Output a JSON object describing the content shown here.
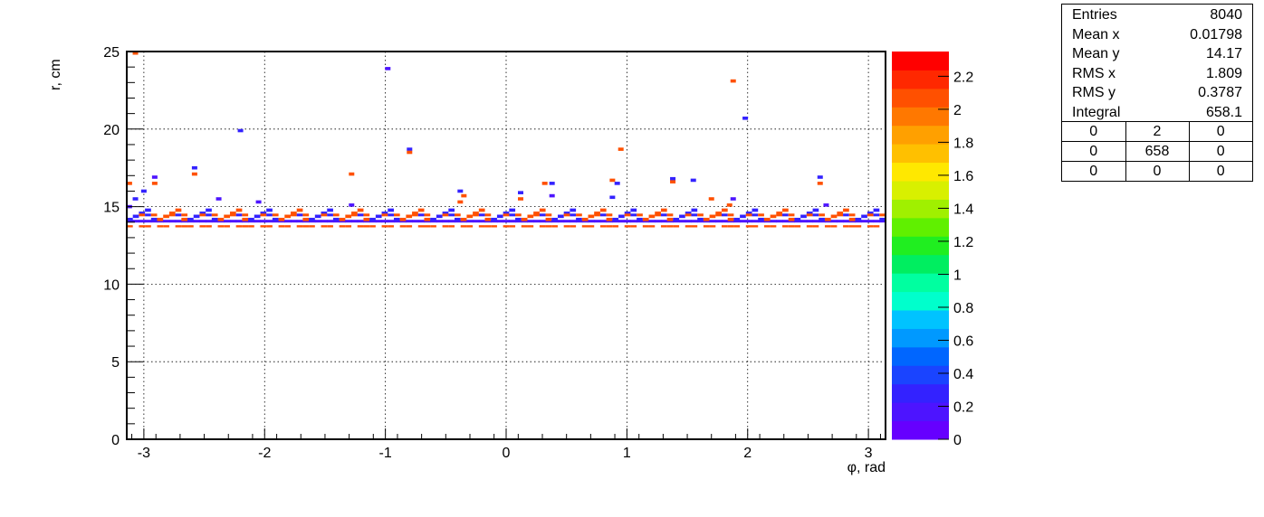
{
  "chart_data": {
    "type": "heatmap",
    "xlabel": "φ, rad",
    "ylabel": "r, cm",
    "xlim": [
      -3.1416,
      3.1416
    ],
    "ylim": [
      0,
      25
    ],
    "xticks": [
      "-3",
      "-2",
      "-1",
      "0",
      "1",
      "2",
      "3"
    ],
    "yticks": [
      "0",
      "5",
      "10",
      "15",
      "20",
      "25"
    ],
    "grid": true,
    "colorbar": {
      "range": [
        0,
        2.35
      ],
      "ticks": [
        "0",
        "0.2",
        "0.4",
        "0.6",
        "0.8",
        "1",
        "1.2",
        "1.4",
        "1.6",
        "1.8",
        "2",
        "2.2"
      ],
      "colors": [
        "#6600ff",
        "#4d14ff",
        "#3322ff",
        "#1a44ff",
        "#0066ff",
        "#0099ff",
        "#00c3ff",
        "#00ffcc",
        "#00ffa0",
        "#00ee60",
        "#20ee20",
        "#60f000",
        "#a0f000",
        "#d8f000",
        "#ffe800",
        "#ffc000",
        "#ffa000",
        "#ff7800",
        "#ff5000",
        "#ff2800",
        "#ff0000"
      ]
    },
    "points": [
      [
        -3.07,
        24.9,
        2.1
      ],
      [
        -3.12,
        16.5,
        2.1
      ],
      [
        -3.0,
        16.0,
        0.3
      ],
      [
        -2.91,
        16.9,
        0.2
      ],
      [
        -2.91,
        16.5,
        2.1
      ],
      [
        -2.58,
        17.5,
        0.3
      ],
      [
        -2.58,
        17.1,
        2.1
      ],
      [
        -2.38,
        15.5,
        0.2
      ],
      [
        -2.2,
        19.9,
        0.3
      ],
      [
        -2.05,
        15.3,
        0.2
      ],
      [
        -1.28,
        17.1,
        2.1
      ],
      [
        -1.28,
        15.1,
        0.2
      ],
      [
        -0.98,
        23.9,
        0.2
      ],
      [
        -0.8,
        18.7,
        0.3
      ],
      [
        -0.8,
        18.5,
        2.1
      ],
      [
        -0.38,
        16.0,
        0.3
      ],
      [
        -0.35,
        15.7,
        2.1
      ],
      [
        -0.38,
        15.3,
        2.1
      ],
      [
        0.12,
        15.9,
        0.3
      ],
      [
        0.12,
        15.5,
        2.1
      ],
      [
        0.32,
        16.5,
        2.1
      ],
      [
        0.38,
        16.5,
        0.3
      ],
      [
        0.38,
        15.7,
        0.2
      ],
      [
        0.88,
        16.7,
        2.1
      ],
      [
        0.92,
        16.5,
        0.3
      ],
      [
        0.95,
        18.7,
        2.1
      ],
      [
        0.88,
        15.6,
        0.3
      ],
      [
        1.38,
        16.8,
        0.3
      ],
      [
        1.38,
        16.6,
        2.1
      ],
      [
        1.55,
        16.7,
        0.3
      ],
      [
        1.7,
        15.5,
        2.1
      ],
      [
        1.88,
        23.1,
        2.1
      ],
      [
        1.98,
        20.7,
        0.3
      ],
      [
        1.88,
        15.5,
        0.2
      ],
      [
        1.85,
        15.1,
        2.1
      ],
      [
        2.6,
        16.9,
        0.3
      ],
      [
        2.6,
        16.5,
        2.1
      ],
      [
        2.65,
        15.1,
        0.2
      ],
      [
        -3.12,
        15.0,
        0.2
      ],
      [
        -3.07,
        15.5,
        0.3
      ]
    ]
  },
  "stats": {
    "rows": [
      {
        "label": "Entries",
        "value": "8040"
      },
      {
        "label": "Mean x",
        "value": "0.01798"
      },
      {
        "label": "Mean y",
        "value": "14.17"
      },
      {
        "label": "RMS x",
        "value": "1.809"
      },
      {
        "label": "RMS y",
        "value": "0.3787"
      },
      {
        "label": "Integral",
        "value": "658.1"
      }
    ],
    "grid": [
      [
        "0",
        "2",
        "0"
      ],
      [
        "0",
        "658",
        "0"
      ],
      [
        "0",
        "0",
        "0"
      ]
    ]
  }
}
